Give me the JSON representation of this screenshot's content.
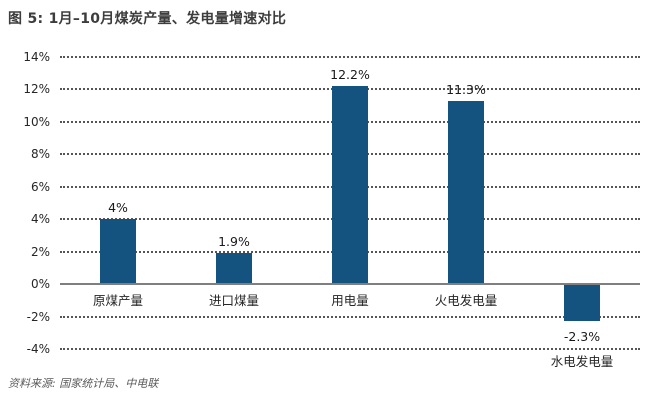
{
  "title": "图 5: 1月–10月煤炭产量、发电量增速对比",
  "source": "资料来源: 国家统计局、中电联",
  "colors": {
    "bar": "#14537F",
    "title_text": "#3D3D3D",
    "axis_text": "#262626",
    "gridline": "#555555",
    "baseline": "#7F7F7F",
    "source_text": "#595959"
  },
  "chart_data": {
    "type": "bar",
    "title": "图 5: 1月–10月煤炭产量、发电量增速对比",
    "categories": [
      "原煤产量",
      "进口煤量",
      "用电量",
      "火电发电量",
      "水电发电量"
    ],
    "values": [
      4,
      1.9,
      12.2,
      11.3,
      -2.3
    ],
    "value_labels": [
      "4%",
      "1.9%",
      "12.2%",
      "11.3%",
      "-2.3%"
    ],
    "xlabel": "",
    "ylabel": "",
    "ylim": [
      -4,
      14
    ],
    "ytick_step": 2,
    "ytick_labels": [
      "14%",
      "12%",
      "10%",
      "8%",
      "6%",
      "4%",
      "2%",
      "0%",
      "-2%",
      "-4%"
    ],
    "grid": "horizontal-dotted",
    "legend": "none",
    "bar_color": "#14537F"
  }
}
